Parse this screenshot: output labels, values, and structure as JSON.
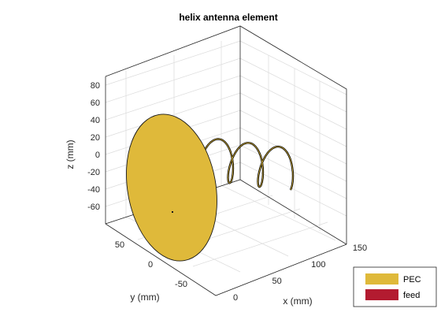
{
  "chart_data": {
    "type": "3d-geometry",
    "title": "helix antenna element",
    "xlabel": "x (mm)",
    "ylabel": "y (mm)",
    "zlabel": "z (mm)",
    "x_ticks": [
      0,
      50,
      100,
      150
    ],
    "y_ticks": [
      50,
      0,
      -50
    ],
    "z_ticks": [
      80,
      60,
      40,
      20,
      0,
      -20,
      -40,
      -60
    ],
    "xlim": [
      0,
      150
    ],
    "ylim": [
      -80,
      80
    ],
    "zlim": [
      -80,
      80
    ],
    "grid": true,
    "legend_position": "bottom-right",
    "legend": [
      {
        "name": "PEC",
        "color": "#dfb93a"
      },
      {
        "name": "feed",
        "color": "#b31b30"
      }
    ],
    "ground_plane": {
      "shape": "disc",
      "center_x": 0,
      "radius": 75
    },
    "helix": {
      "turns": 3,
      "radius": 20,
      "x_start": 5,
      "x_end": 125
    }
  }
}
